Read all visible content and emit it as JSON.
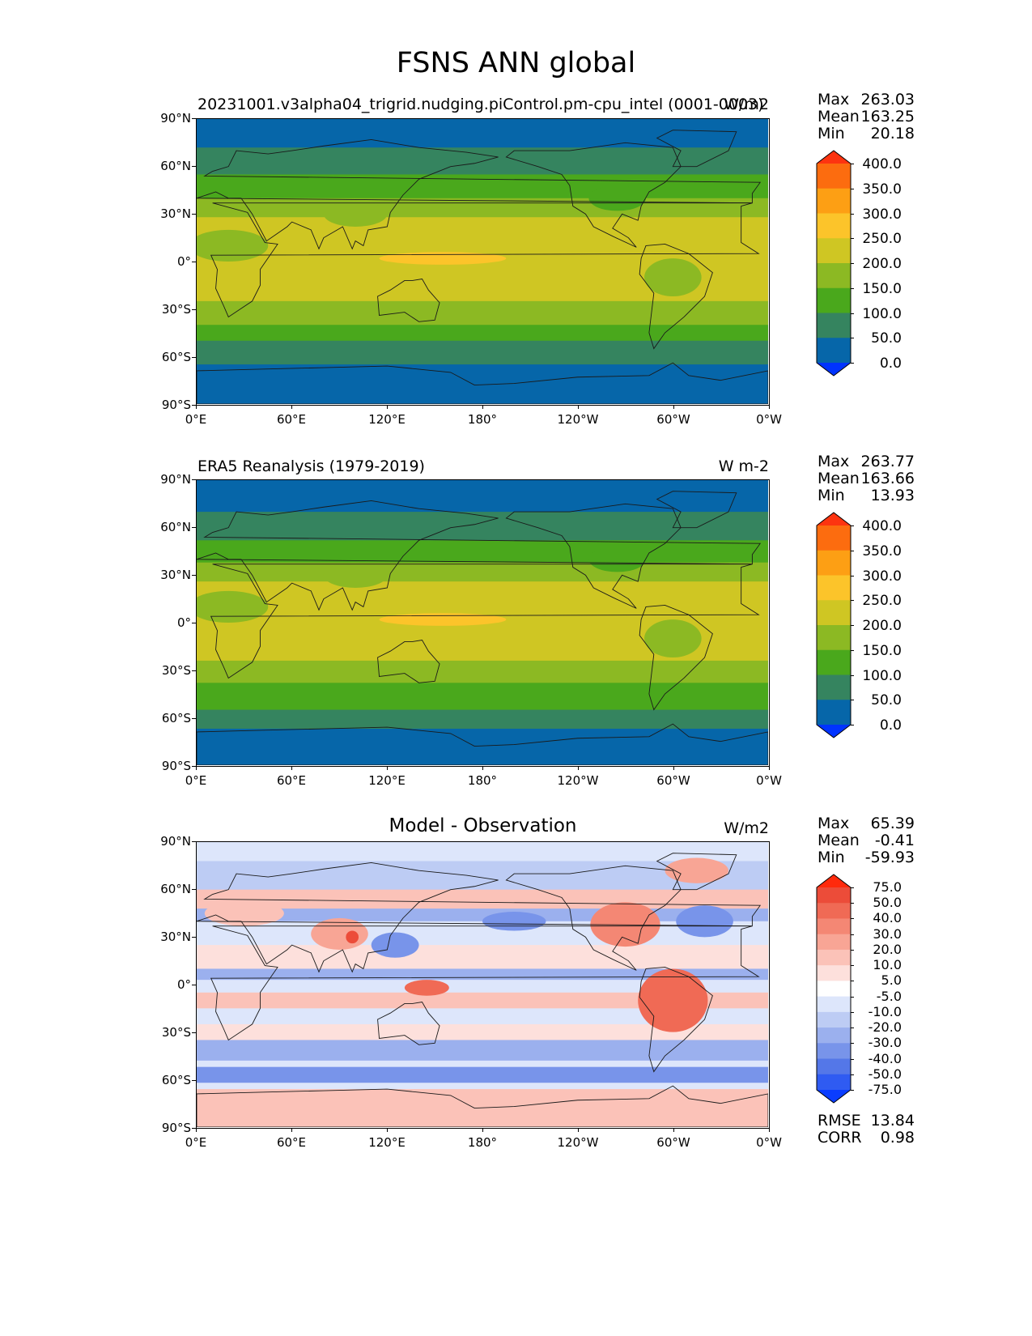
{
  "title": "FSNS ANN global",
  "palettes": {
    "absolute": [
      "#0033ff",
      "#0666a9",
      "#35845f",
      "#4aa81c",
      "#8cb923",
      "#cfc623",
      "#fcc42a",
      "#fd9f14",
      "#fc6c0f",
      "#fd3410"
    ],
    "absolute_ticks": [
      "0.0",
      "50.0",
      "100.0",
      "150.0",
      "200.0",
      "250.0",
      "300.0",
      "350.0",
      "400.0"
    ],
    "diff": [
      "#0a3dff",
      "#2f5bf2",
      "#5477e8",
      "#7894ea",
      "#9bb0ee",
      "#bdccf4",
      "#dde6fb",
      "#ffffff",
      "#fde0dc",
      "#fbc2b8",
      "#f8a595",
      "#f48774",
      "#f06a55",
      "#ec4c39",
      "#ff2a0c"
    ],
    "diff_ticks": [
      "-75.0",
      "-50.0",
      "-40.0",
      "-30.0",
      "-20.0",
      "-10.0",
      "-5.0",
      "5.0",
      "10.0",
      "20.0",
      "30.0",
      "40.0",
      "50.0",
      "75.0"
    ]
  },
  "axes": {
    "lat_ticks": [
      "90°N",
      "60°N",
      "30°N",
      "0°",
      "30°S",
      "60°S",
      "90°S"
    ],
    "lon_ticks": [
      "0°E",
      "60°E",
      "120°E",
      "180°",
      "120°W",
      "60°W",
      "0°W"
    ]
  },
  "chart_data": [
    {
      "type": "heatmap",
      "title": "20231001.v3alpha04_trigrid.nudging.piControl.pm-cpu_intel (0001-0003)",
      "units": "W/m2",
      "stats": {
        "max_label": "Max",
        "max": "263.03",
        "mean_label": "Mean",
        "mean": "163.25",
        "min_label": "Min",
        "min": "20.18"
      },
      "colorbar": "absolute",
      "zonal_band_values": [
        {
          "lat": [
            90,
            72
          ],
          "value": 30
        },
        {
          "lat": [
            72,
            55
          ],
          "value": 90
        },
        {
          "lat": [
            55,
            40
          ],
          "value": 130
        },
        {
          "lat": [
            40,
            28
          ],
          "value": 170
        },
        {
          "lat": [
            28,
            -25
          ],
          "value": 225
        },
        {
          "lat": [
            -25,
            -40
          ],
          "value": 170
        },
        {
          "lat": [
            -40,
            -50
          ],
          "value": 130
        },
        {
          "lat": [
            -50,
            -65
          ],
          "value": 90
        },
        {
          "lat": [
            -65,
            -90
          ],
          "value": 30
        }
      ]
    },
    {
      "type": "heatmap",
      "title": "ERA5 Reanalysis (1979-2019)",
      "units": "W m-2",
      "stats": {
        "max_label": "Max",
        "max": "263.77",
        "mean_label": "Mean",
        "mean": "163.66",
        "min_label": "Min",
        "min": "13.93"
      },
      "colorbar": "absolute",
      "zonal_band_values": [
        {
          "lat": [
            90,
            70
          ],
          "value": 30
        },
        {
          "lat": [
            70,
            52
          ],
          "value": 90
        },
        {
          "lat": [
            52,
            38
          ],
          "value": 130
        },
        {
          "lat": [
            38,
            26
          ],
          "value": 170
        },
        {
          "lat": [
            26,
            -24
          ],
          "value": 225
        },
        {
          "lat": [
            -24,
            -38
          ],
          "value": 170
        },
        {
          "lat": [
            -38,
            -55
          ],
          "value": 130
        },
        {
          "lat": [
            -55,
            -67
          ],
          "value": 90
        },
        {
          "lat": [
            -67,
            -90
          ],
          "value": 30
        }
      ]
    },
    {
      "type": "heatmap",
      "title": "Model - Observation",
      "units": "W/m2",
      "stats": {
        "max_label": "Max",
        "max": "65.39",
        "mean_label": "Mean",
        "mean": "-0.41",
        "min_label": "Min",
        "min": "-59.93"
      },
      "colorbar": "diff",
      "rmse_label": "RMSE",
      "rmse": "13.84",
      "corr_label": "CORR",
      "corr": "0.98"
    }
  ]
}
